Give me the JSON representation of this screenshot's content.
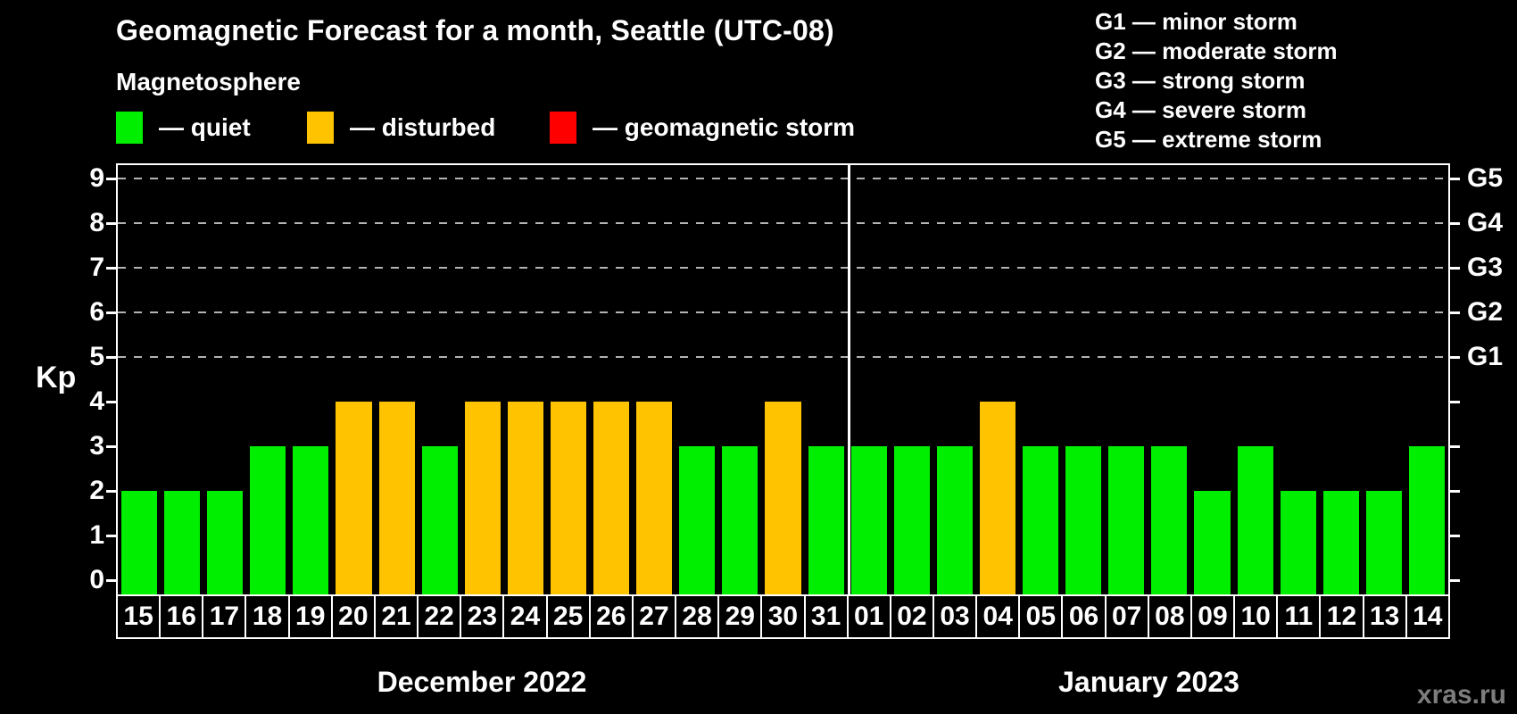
{
  "title": "Geomagnetic Forecast for a month, Seattle (UTC-08)",
  "subtitle": "Magnetosphere",
  "watermark": "xras.ru",
  "colors": {
    "quiet": "#00ee00",
    "disturbed": "#ffc300",
    "storm": "#ff0000",
    "axis": "#ffffff",
    "grid": "#b3b3b3",
    "background": "#000000",
    "watermark": "#7d7d7d"
  },
  "kp_legend": [
    {
      "name": "quiet",
      "label": "— quiet"
    },
    {
      "name": "disturbed",
      "label": "— disturbed"
    },
    {
      "name": "storm",
      "label": "— geomagnetic storm"
    }
  ],
  "storm_legend": [
    "G1 — minor storm",
    "G2 — moderate storm",
    "G3 — strong storm",
    "G4 — severe storm",
    "G5 — extreme storm"
  ],
  "y_axis": {
    "label": "Kp",
    "ticks": [
      9,
      8,
      7,
      6,
      5,
      4,
      3,
      2,
      1,
      0
    ]
  },
  "right_axis_labels": [
    {
      "kp": 9,
      "label": "G5"
    },
    {
      "kp": 8,
      "label": "G4"
    },
    {
      "kp": 7,
      "label": "G3"
    },
    {
      "kp": 6,
      "label": "G2"
    },
    {
      "kp": 5,
      "label": "G1"
    }
  ],
  "months": [
    {
      "label": "December 2022",
      "start_index": 0,
      "count": 17
    },
    {
      "label": "January 2023",
      "start_index": 17,
      "count": 14
    }
  ],
  "chart_data": {
    "type": "bar",
    "title": "Geomagnetic Forecast for a month, Seattle (UTC-08)",
    "xlabel": "",
    "ylabel": "Kp",
    "ylim": [
      0,
      9
    ],
    "grid_levels_dashed": [
      5,
      6,
      7,
      8,
      9
    ],
    "legend_position": "top",
    "legend_entries": [
      "quiet",
      "disturbed",
      "geomagnetic storm"
    ],
    "days": [
      {
        "day": "15",
        "month": "December 2022",
        "kp": 2,
        "status": "quiet"
      },
      {
        "day": "16",
        "month": "December 2022",
        "kp": 2,
        "status": "quiet"
      },
      {
        "day": "17",
        "month": "December 2022",
        "kp": 2,
        "status": "quiet"
      },
      {
        "day": "18",
        "month": "December 2022",
        "kp": 3,
        "status": "quiet"
      },
      {
        "day": "19",
        "month": "December 2022",
        "kp": 3,
        "status": "quiet"
      },
      {
        "day": "20",
        "month": "December 2022",
        "kp": 4,
        "status": "disturbed"
      },
      {
        "day": "21",
        "month": "December 2022",
        "kp": 4,
        "status": "disturbed"
      },
      {
        "day": "22",
        "month": "December 2022",
        "kp": 3,
        "status": "quiet"
      },
      {
        "day": "23",
        "month": "December 2022",
        "kp": 4,
        "status": "disturbed"
      },
      {
        "day": "24",
        "month": "December 2022",
        "kp": 4,
        "status": "disturbed"
      },
      {
        "day": "25",
        "month": "December 2022",
        "kp": 4,
        "status": "disturbed"
      },
      {
        "day": "26",
        "month": "December 2022",
        "kp": 4,
        "status": "disturbed"
      },
      {
        "day": "27",
        "month": "December 2022",
        "kp": 4,
        "status": "disturbed"
      },
      {
        "day": "28",
        "month": "December 2022",
        "kp": 3,
        "status": "quiet"
      },
      {
        "day": "29",
        "month": "December 2022",
        "kp": 3,
        "status": "quiet"
      },
      {
        "day": "30",
        "month": "December 2022",
        "kp": 4,
        "status": "disturbed"
      },
      {
        "day": "31",
        "month": "December 2022",
        "kp": 3,
        "status": "quiet"
      },
      {
        "day": "01",
        "month": "January 2023",
        "kp": 3,
        "status": "quiet"
      },
      {
        "day": "02",
        "month": "January 2023",
        "kp": 3,
        "status": "quiet"
      },
      {
        "day": "03",
        "month": "January 2023",
        "kp": 3,
        "status": "quiet"
      },
      {
        "day": "04",
        "month": "January 2023",
        "kp": 4,
        "status": "disturbed"
      },
      {
        "day": "05",
        "month": "January 2023",
        "kp": 3,
        "status": "quiet"
      },
      {
        "day": "06",
        "month": "January 2023",
        "kp": 3,
        "status": "quiet"
      },
      {
        "day": "07",
        "month": "January 2023",
        "kp": 3,
        "status": "quiet"
      },
      {
        "day": "08",
        "month": "January 2023",
        "kp": 3,
        "status": "quiet"
      },
      {
        "day": "09",
        "month": "January 2023",
        "kp": 2,
        "status": "quiet"
      },
      {
        "day": "10",
        "month": "January 2023",
        "kp": 3,
        "status": "quiet"
      },
      {
        "day": "11",
        "month": "January 2023",
        "kp": 2,
        "status": "quiet"
      },
      {
        "day": "12",
        "month": "January 2023",
        "kp": 2,
        "status": "quiet"
      },
      {
        "day": "13",
        "month": "January 2023",
        "kp": 2,
        "status": "quiet"
      },
      {
        "day": "14",
        "month": "January 2023",
        "kp": 3,
        "status": "quiet"
      }
    ]
  }
}
